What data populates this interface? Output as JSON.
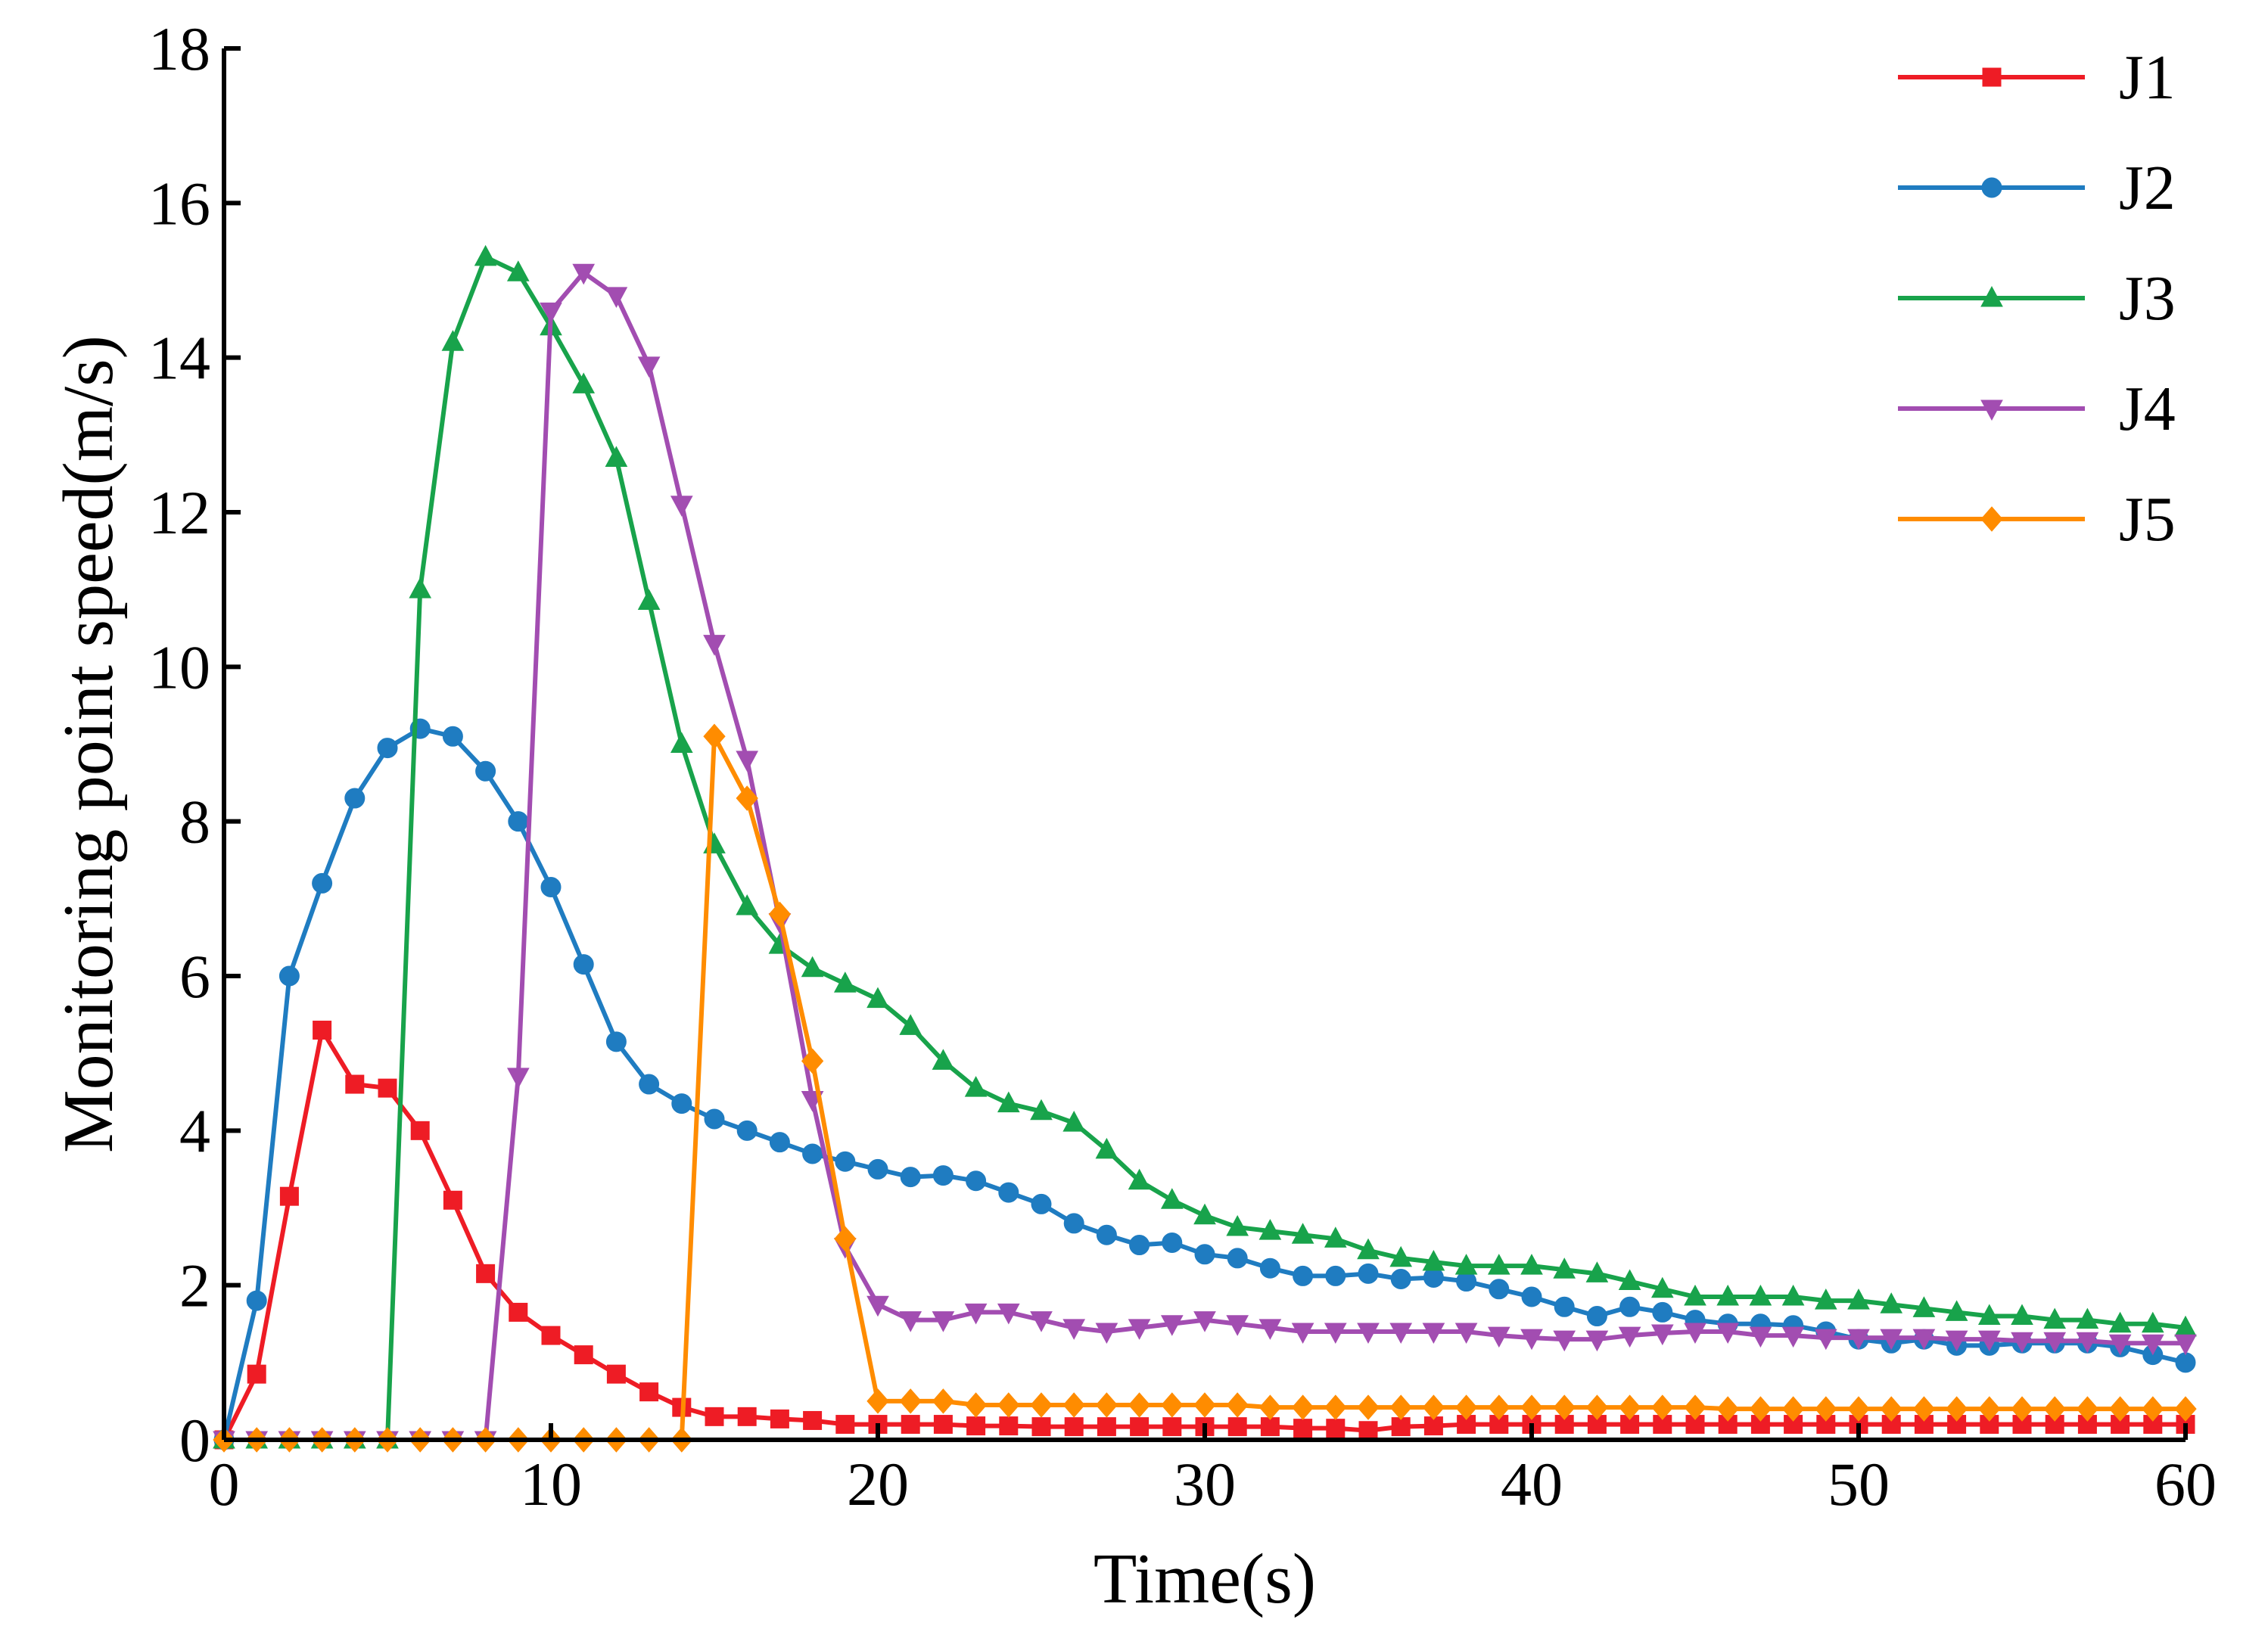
{
  "chart_data": {
    "type": "line",
    "title": "",
    "xlabel": "Time(s)",
    "ylabel": "Monitoring point speed(m/s)",
    "xlim": [
      0,
      60
    ],
    "ylim": [
      0,
      18
    ],
    "xticks": [
      0,
      10,
      20,
      30,
      40,
      50,
      60
    ],
    "yticks": [
      0,
      2,
      4,
      6,
      8,
      10,
      12,
      14,
      16,
      18
    ],
    "grid": false,
    "legend_position": "top-right",
    "x": [
      0,
      1,
      2,
      3,
      4,
      5,
      6,
      7,
      8,
      9,
      10,
      11,
      12,
      13,
      14,
      15,
      16,
      17,
      18,
      19,
      20,
      21,
      22,
      23,
      24,
      25,
      26,
      27,
      28,
      29,
      30,
      31,
      32,
      33,
      34,
      35,
      36,
      37,
      38,
      39,
      40,
      41,
      42,
      43,
      44,
      45,
      46,
      47,
      48,
      49,
      50,
      51,
      52,
      53,
      54,
      55,
      56,
      57,
      58,
      59,
      60
    ],
    "series": [
      {
        "name": "J1",
        "color": "#ee1c25",
        "marker": "square",
        "values": [
          0,
          0.85,
          3.15,
          5.3,
          4.6,
          4.55,
          4.0,
          3.1,
          2.15,
          1.65,
          1.35,
          1.1,
          0.85,
          0.62,
          0.42,
          0.3,
          0.3,
          0.27,
          0.25,
          0.2,
          0.2,
          0.2,
          0.2,
          0.18,
          0.18,
          0.17,
          0.17,
          0.17,
          0.17,
          0.17,
          0.17,
          0.17,
          0.17,
          0.15,
          0.15,
          0.12,
          0.17,
          0.18,
          0.2,
          0.2,
          0.2,
          0.2,
          0.2,
          0.2,
          0.2,
          0.2,
          0.2,
          0.2,
          0.2,
          0.2,
          0.2,
          0.2,
          0.2,
          0.2,
          0.2,
          0.2,
          0.2,
          0.2,
          0.2,
          0.2,
          0.2
        ]
      },
      {
        "name": "J2",
        "color": "#1f7cc1",
        "marker": "circle",
        "values": [
          0,
          1.8,
          6.0,
          7.2,
          8.3,
          8.95,
          9.2,
          9.1,
          8.65,
          8.0,
          7.15,
          6.15,
          5.15,
          4.6,
          4.35,
          4.15,
          4.0,
          3.85,
          3.7,
          3.6,
          3.5,
          3.4,
          3.42,
          3.35,
          3.2,
          3.05,
          2.8,
          2.65,
          2.52,
          2.55,
          2.4,
          2.35,
          2.22,
          2.12,
          2.12,
          2.15,
          2.08,
          2.1,
          2.05,
          1.95,
          1.85,
          1.72,
          1.6,
          1.72,
          1.65,
          1.55,
          1.5,
          1.5,
          1.48,
          1.4,
          1.3,
          1.25,
          1.3,
          1.22,
          1.22,
          1.25,
          1.25,
          1.25,
          1.2,
          1.1,
          1.0
        ]
      },
      {
        "name": "J3",
        "color": "#18a34b",
        "marker": "triangle-up",
        "values": [
          0,
          0,
          0,
          0,
          0,
          0,
          11.0,
          14.2,
          15.3,
          15.1,
          14.4,
          13.65,
          12.7,
          10.85,
          9.0,
          7.7,
          6.9,
          6.4,
          6.1,
          5.9,
          5.7,
          5.35,
          4.9,
          4.55,
          4.35,
          4.25,
          4.1,
          3.75,
          3.35,
          3.1,
          2.9,
          2.75,
          2.7,
          2.65,
          2.6,
          2.45,
          2.35,
          2.3,
          2.25,
          2.25,
          2.25,
          2.2,
          2.15,
          2.05,
          1.95,
          1.85,
          1.85,
          1.85,
          1.85,
          1.8,
          1.8,
          1.75,
          1.7,
          1.65,
          1.6,
          1.6,
          1.55,
          1.55,
          1.5,
          1.5,
          1.45
        ]
      },
      {
        "name": "J4",
        "color": "#a24db1",
        "marker": "triangle-down",
        "values": [
          0,
          0,
          0,
          0,
          0,
          0,
          0,
          0,
          0,
          4.7,
          14.6,
          15.1,
          14.8,
          13.9,
          12.1,
          10.3,
          8.8,
          6.7,
          4.4,
          2.5,
          1.75,
          1.55,
          1.55,
          1.65,
          1.65,
          1.55,
          1.45,
          1.4,
          1.45,
          1.5,
          1.55,
          1.5,
          1.45,
          1.4,
          1.4,
          1.4,
          1.4,
          1.4,
          1.4,
          1.35,
          1.32,
          1.3,
          1.3,
          1.35,
          1.38,
          1.4,
          1.4,
          1.35,
          1.35,
          1.32,
          1.32,
          1.32,
          1.32,
          1.3,
          1.3,
          1.28,
          1.28,
          1.28,
          1.25,
          1.25,
          1.25
        ]
      },
      {
        "name": "J5",
        "color": "#ff8c00",
        "marker": "diamond",
        "values": [
          0,
          0,
          0,
          0,
          0,
          0,
          0,
          0,
          0,
          0,
          0,
          0,
          0,
          0,
          0,
          9.1,
          8.3,
          6.8,
          4.9,
          2.6,
          0.5,
          0.5,
          0.5,
          0.45,
          0.45,
          0.45,
          0.45,
          0.45,
          0.45,
          0.45,
          0.45,
          0.45,
          0.42,
          0.42,
          0.42,
          0.42,
          0.42,
          0.42,
          0.42,
          0.42,
          0.42,
          0.42,
          0.42,
          0.42,
          0.42,
          0.42,
          0.4,
          0.4,
          0.4,
          0.4,
          0.4,
          0.4,
          0.4,
          0.4,
          0.4,
          0.4,
          0.4,
          0.4,
          0.4,
          0.4,
          0.4
        ]
      }
    ]
  }
}
